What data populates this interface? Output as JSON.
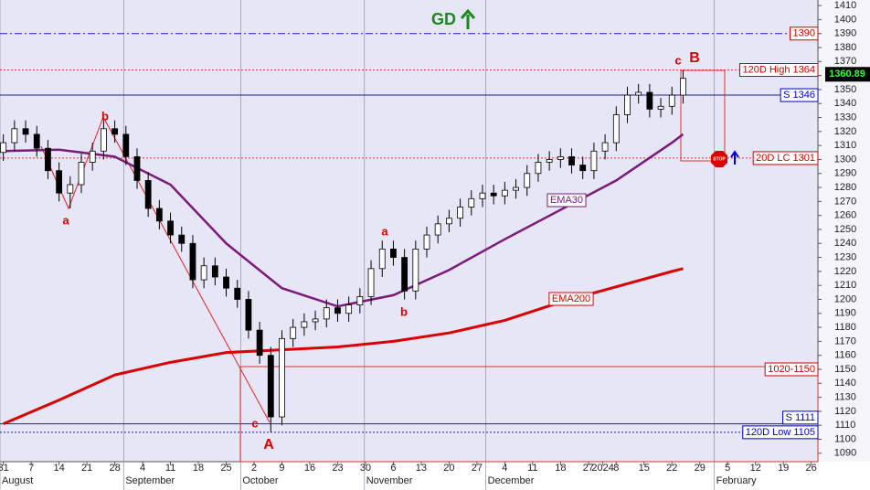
{
  "chart_data": {
    "type": "candlestick",
    "open": [
      1305,
      1312,
      1322,
      1318,
      1308,
      1292,
      1276,
      1282,
      1298,
      1306,
      1322,
      1318,
      1302,
      1285,
      1265,
      1256,
      1246,
      1240,
      1214,
      1224,
      1216,
      1208,
      1200,
      1178,
      1160,
      1116,
      1172,
      1180,
      1184,
      1186,
      1194,
      1190,
      1196,
      1202,
      1222,
      1236,
      1230,
      1206,
      1236,
      1246,
      1254,
      1258,
      1266,
      1272,
      1276,
      1274,
      1278,
      1280,
      1290,
      1298,
      1300,
      1302,
      1296,
      1292,
      1306,
      1312,
      1332,
      1346,
      1348,
      1336,
      1338,
      1346
    ],
    "high": [
      1318,
      1328,
      1328,
      1324,
      1314,
      1298,
      1288,
      1304,
      1312,
      1328,
      1328,
      1324,
      1308,
      1291,
      1271,
      1262,
      1252,
      1246,
      1230,
      1230,
      1222,
      1214,
      1206,
      1184,
      1166,
      1178,
      1186,
      1190,
      1192,
      1200,
      1200,
      1202,
      1208,
      1228,
      1242,
      1242,
      1236,
      1242,
      1252,
      1260,
      1264,
      1272,
      1278,
      1282,
      1282,
      1284,
      1286,
      1296,
      1304,
      1306,
      1308,
      1308,
      1302,
      1312,
      1318,
      1338,
      1352,
      1354,
      1354,
      1344,
      1352,
      1364
    ],
    "low": [
      1299,
      1306,
      1312,
      1302,
      1286,
      1270,
      1265,
      1276,
      1292,
      1300,
      1312,
      1296,
      1279,
      1259,
      1250,
      1240,
      1234,
      1208,
      1208,
      1210,
      1202,
      1194,
      1172,
      1154,
      1105,
      1110,
      1166,
      1174,
      1178,
      1180,
      1184,
      1184,
      1190,
      1196,
      1216,
      1224,
      1200,
      1200,
      1230,
      1240,
      1248,
      1252,
      1260,
      1266,
      1268,
      1268,
      1272,
      1274,
      1284,
      1292,
      1294,
      1290,
      1286,
      1286,
      1300,
      1306,
      1326,
      1340,
      1330,
      1330,
      1332,
      1340
    ],
    "close": [
      1312,
      1322,
      1318,
      1308,
      1292,
      1276,
      1282,
      1298,
      1306,
      1322,
      1318,
      1302,
      1285,
      1265,
      1256,
      1246,
      1240,
      1214,
      1224,
      1216,
      1208,
      1200,
      1178,
      1160,
      1116,
      1172,
      1180,
      1184,
      1186,
      1194,
      1190,
      1196,
      1202,
      1222,
      1236,
      1230,
      1206,
      1236,
      1246,
      1254,
      1258,
      1266,
      1272,
      1276,
      1274,
      1278,
      1280,
      1290,
      1298,
      1300,
      1302,
      1296,
      1292,
      1306,
      1312,
      1332,
      1346,
      1348,
      1336,
      1338,
      1346,
      1358
    ],
    "lines": [
      {
        "name": "EMA30",
        "color": "#7a1a7a",
        "x": [
          0,
          5,
          10,
          15,
          20,
          25,
          30,
          35,
          40,
          45,
          50,
          55,
          60,
          61
        ],
        "values": [
          1306,
          1307,
          1302,
          1282,
          1240,
          1208,
          1195,
          1203,
          1221,
          1243,
          1264,
          1285,
          1312,
          1318
        ]
      },
      {
        "name": "EMA200",
        "color": "#dd0000",
        "x": [
          0,
          5,
          10,
          15,
          20,
          25,
          30,
          35,
          40,
          45,
          50,
          55,
          60,
          61
        ],
        "values": [
          1111,
          1128,
          1146,
          1155,
          1162,
          1164,
          1166,
          1170,
          1176,
          1185,
          1198,
          1209,
          1220,
          1222
        ]
      }
    ],
    "levels": [
      {
        "value": 1390,
        "color": "#cc0000",
        "line_color": "#2020c0",
        "style": "dashdot"
      },
      {
        "value": 1364,
        "label": "120D High 1364",
        "color": "#cc0000",
        "line_color": "#dd3333",
        "style": "dotted"
      },
      {
        "value": 1346,
        "label": "S 1346",
        "color": "#0000cc",
        "line_color": "#2020a0",
        "style": "solid"
      },
      {
        "value": 1301,
        "label": "20D LC 1301",
        "color": "#cc0000",
        "line_color": "#dd3333",
        "style": "dotted"
      },
      {
        "value": 1150,
        "label": "1020-1150",
        "color": "#cc0000",
        "line_color": "#dd3333",
        "style": "none"
      },
      {
        "value": 1111,
        "label": "S 1111",
        "color": "#0000cc",
        "line_color": "#2020a0",
        "style": "solid"
      },
      {
        "value": 1105,
        "label": "120D Low 1105",
        "color": "#0000cc",
        "line_color": "#2020a0",
        "style": "dotted"
      }
    ],
    "last_price": 1360.89,
    "annotations": [
      "GD",
      "a",
      "b",
      "a",
      "b",
      "c",
      "A",
      "c",
      "B",
      "STOP"
    ],
    "xlim": [
      -0.3,
      73.1
    ],
    "xticks": [
      {
        "value": 0,
        "label": "31"
      },
      {
        "value": 2.5,
        "label": "7"
      },
      {
        "value": 5,
        "label": "14"
      },
      {
        "value": 7.5,
        "label": "21"
      },
      {
        "value": 10,
        "label": "28"
      },
      {
        "value": 12.5,
        "label": "4"
      },
      {
        "value": 15,
        "label": "11"
      },
      {
        "value": 17.5,
        "label": "18"
      },
      {
        "value": 20,
        "label": "25"
      },
      {
        "value": 22.5,
        "label": "2"
      },
      {
        "value": 25,
        "label": "9"
      },
      {
        "value": 27.5,
        "label": "16"
      },
      {
        "value": 30,
        "label": "23"
      },
      {
        "value": 32.5,
        "label": "30"
      },
      {
        "value": 35,
        "label": "6"
      },
      {
        "value": 37.5,
        "label": "13"
      },
      {
        "value": 40,
        "label": "20"
      },
      {
        "value": 42.5,
        "label": "27"
      },
      {
        "value": 45,
        "label": "4"
      },
      {
        "value": 47.5,
        "label": "11"
      },
      {
        "value": 50,
        "label": "18"
      },
      {
        "value": 52.5,
        "label": "27"
      },
      {
        "value": 53.8,
        "label": "2024"
      },
      {
        "value": 55,
        "label": "8"
      },
      {
        "value": 57.5,
        "label": "15"
      },
      {
        "value": 60,
        "label": "22"
      },
      {
        "value": 62.5,
        "label": "29"
      },
      {
        "value": 65,
        "label": "5"
      },
      {
        "value": 67.5,
        "label": "12"
      },
      {
        "value": 70,
        "label": "19"
      },
      {
        "value": 72.5,
        "label": "26"
      }
    ],
    "months": [
      {
        "value": -0.3,
        "label": "August"
      },
      {
        "value": 10.8,
        "label": "September"
      },
      {
        "value": 21.3,
        "label": "October"
      },
      {
        "value": 32.4,
        "label": "November"
      },
      {
        "value": 43.3,
        "label": "December"
      },
      {
        "value": 63.8,
        "label": "February"
      }
    ],
    "ylim": [
      1084,
      1414
    ],
    "yticks": [
      1090,
      1100,
      1110,
      1120,
      1130,
      1140,
      1150,
      1160,
      1170,
      1180,
      1190,
      1200,
      1210,
      1220,
      1230,
      1240,
      1250,
      1260,
      1270,
      1280,
      1290,
      1300,
      1310,
      1320,
      1330,
      1340,
      1350,
      1360,
      1370,
      1380,
      1390,
      1400,
      1410
    ],
    "colors": {
      "up": "#ffffff",
      "down": "#000000",
      "background": "#e6e6f6"
    }
  }
}
